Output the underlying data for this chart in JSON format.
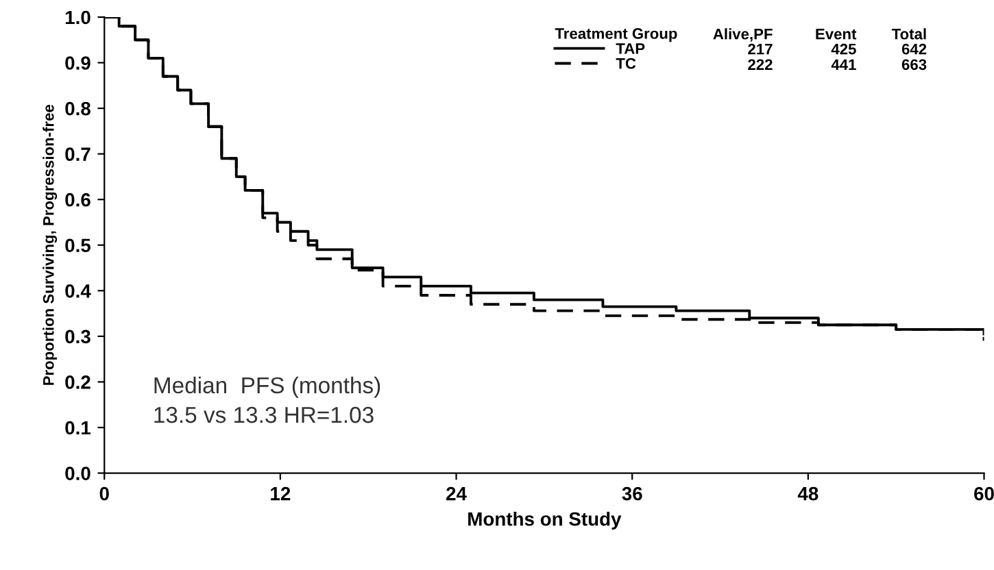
{
  "chart_data": {
    "type": "step",
    "xlabel": "Months on Study",
    "ylabel": "Proportion Surviving, Progression-free",
    "legend_title": "Treatment Group",
    "series": [
      {
        "name": "TAP",
        "color": "#000000",
        "line_style": "solid",
        "x": [
          0,
          1,
          2.1,
          3,
          4,
          5,
          5.9,
          7.1,
          8,
          9,
          9.6,
          10.8,
          11.8,
          12.7,
          13.9,
          14.5,
          16.9,
          19,
          21.6,
          25,
          29.3,
          34,
          39,
          44,
          48.7,
          54,
          60
        ],
        "values": [
          1.0,
          0.98,
          0.95,
          0.91,
          0.87,
          0.84,
          0.81,
          0.76,
          0.69,
          0.65,
          0.62,
          0.57,
          0.55,
          0.53,
          0.5,
          0.49,
          0.45,
          0.43,
          0.41,
          0.395,
          0.38,
          0.365,
          0.356,
          0.34,
          0.325,
          0.315,
          0.305
        ]
      },
      {
        "name": "TC",
        "color": "#000000",
        "line_style": "dashed",
        "x": [
          0,
          1,
          2.1,
          3,
          4,
          5,
          5.9,
          7.1,
          8,
          9,
          9.6,
          10.8,
          11.8,
          12.7,
          14.5,
          16.9,
          19,
          21.6,
          25,
          29.3,
          34,
          39,
          44,
          48.7,
          54,
          60
        ],
        "values": [
          1.0,
          0.98,
          0.95,
          0.91,
          0.87,
          0.84,
          0.81,
          0.76,
          0.69,
          0.65,
          0.62,
          0.56,
          0.53,
          0.51,
          0.47,
          0.445,
          0.41,
          0.39,
          0.37,
          0.356,
          0.345,
          0.337,
          0.33,
          0.325,
          0.315,
          0.29
        ]
      }
    ],
    "xlim": [
      0,
      60
    ],
    "xticks": [
      0,
      12,
      24,
      36,
      48,
      60
    ],
    "ylim": [
      0,
      1.0
    ],
    "yticks": [
      {
        "value": 0,
        "label": "0.0"
      },
      0.1,
      0.2,
      0.3,
      0.4,
      0.5,
      0.6,
      0.7,
      0.8,
      0.9,
      {
        "value": 1,
        "label": "1.0"
      }
    ],
    "legend": "top right",
    "marker": "none",
    "grid": false,
    "annotations": [
      "Alive,PF",
      "Event",
      "Total",
      "217",
      "425",
      "642",
      "222",
      "441",
      "663",
      "Median  PFS (months)\n13.5 vs 13.3 HR=1.03"
    ]
  }
}
